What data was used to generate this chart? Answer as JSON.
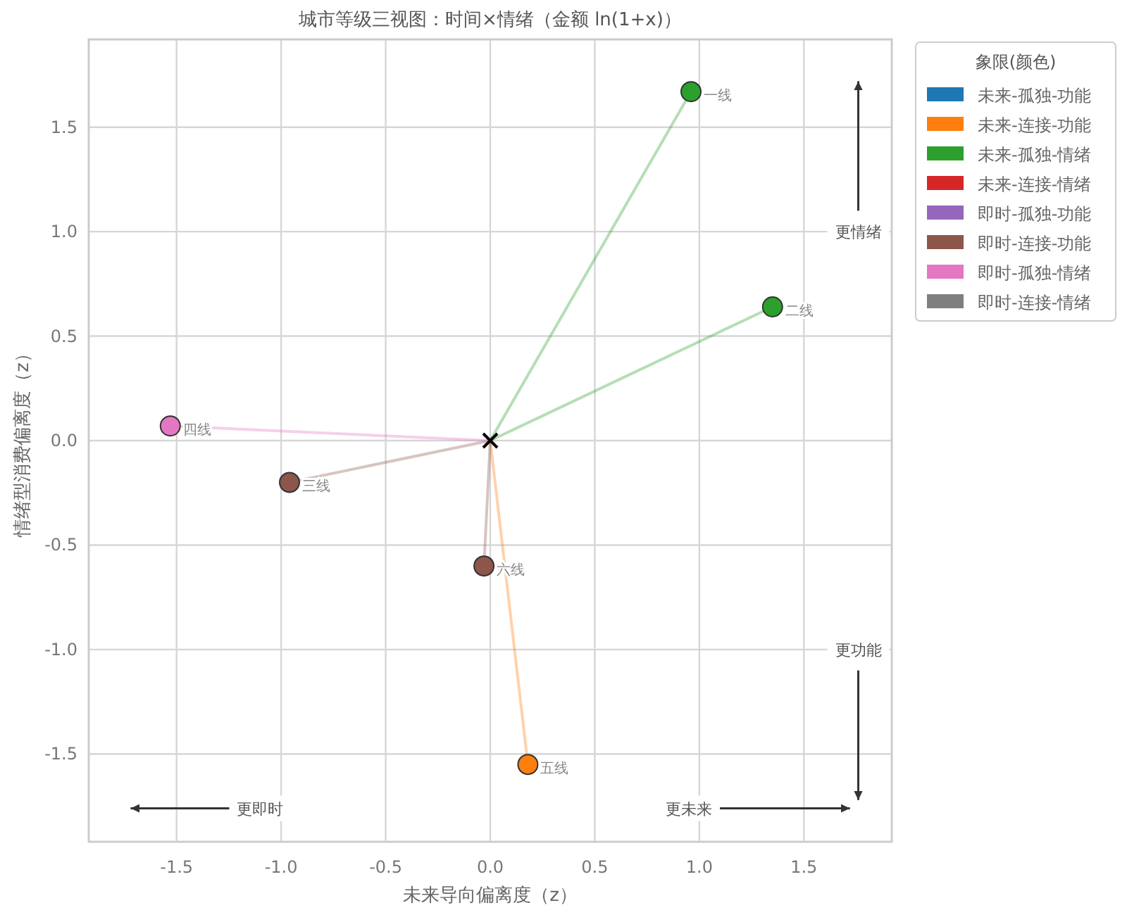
{
  "chart_data": {
    "type": "scatter",
    "title": "城市等级三视图：时间×情绪（金额 ln(1+x)）",
    "xlabel": "未来导向偏离度（z）",
    "ylabel": "情绪型消费偏离度（z）",
    "legend_title": "象限(颜色)",
    "xlim": [
      -1.92,
      1.92
    ],
    "ylim": [
      -1.92,
      1.92
    ],
    "xticks": [
      {
        "value": -1.5,
        "label": "-1.5"
      },
      {
        "value": -1,
        "label": "-1.0"
      },
      {
        "value": -0.5,
        "label": "-0.5"
      },
      {
        "value": 0,
        "label": "0.0"
      },
      {
        "value": 0.5,
        "label": "0.5"
      },
      {
        "value": 1,
        "label": "1.0"
      },
      {
        "value": 1.5,
        "label": "1.5"
      }
    ],
    "yticks": [
      {
        "value": -1.5,
        "label": "-1.5"
      },
      {
        "value": -1,
        "label": "-1.0"
      },
      {
        "value": -0.5,
        "label": "-0.5"
      },
      {
        "value": 0,
        "label": "0.0"
      },
      {
        "value": 0.5,
        "label": "0.5"
      },
      {
        "value": 1,
        "label": "1.0"
      },
      {
        "value": 1.5,
        "label": "1.5"
      }
    ],
    "grid": true,
    "legend": "top right",
    "series": [
      {
        "name": "未来-孤独-功能",
        "type": "lollipop",
        "color": "#1f77b4"
      },
      {
        "name": "未来-连接-功能",
        "type": "lollipop",
        "color": "#ff7f0e",
        "x": [
          0.18
        ],
        "values": [
          -1.55
        ]
      },
      {
        "name": "未来-孤独-情绪",
        "type": "lollipop",
        "color": "#2ca02c",
        "x": [
          0.96,
          1.35
        ],
        "values": [
          1.67,
          0.64
        ]
      },
      {
        "name": "未来-连接-情绪",
        "type": "lollipop",
        "color": "#d62728"
      },
      {
        "name": "即时-孤独-功能",
        "type": "lollipop",
        "color": "#9467bd"
      },
      {
        "name": "即时-连接-功能",
        "type": "lollipop",
        "color": "#8c564b",
        "x": [
          -0.96,
          -0.03
        ],
        "values": [
          -0.2,
          -0.6
        ]
      },
      {
        "name": "即时-孤独-情绪",
        "type": "lollipop",
        "color": "#e377c2",
        "x": [
          -1.53
        ],
        "values": [
          0.07
        ]
      },
      {
        "name": "即时-连接-情绪",
        "type": "lollipop",
        "color": "#7f7f7f"
      },
      {
        "marker": "cross",
        "color": "#000000",
        "x": [
          0
        ],
        "values": [
          0
        ]
      }
    ],
    "annotations": [
      "更情绪",
      "更功能",
      "更即时",
      "更未来",
      {
        "text": "一线",
        "x": 0.96,
        "y": 1.67
      },
      {
        "text": "二线",
        "x": 1.35,
        "y": 0.64
      },
      {
        "text": "四线",
        "x": -1.53,
        "y": 0.07
      },
      {
        "text": "三线",
        "x": -0.96,
        "y": -0.2
      },
      {
        "text": "六线",
        "x": -0.03,
        "y": -0.6
      },
      {
        "text": "五线",
        "x": 0.18,
        "y": -1.55
      }
    ]
  }
}
